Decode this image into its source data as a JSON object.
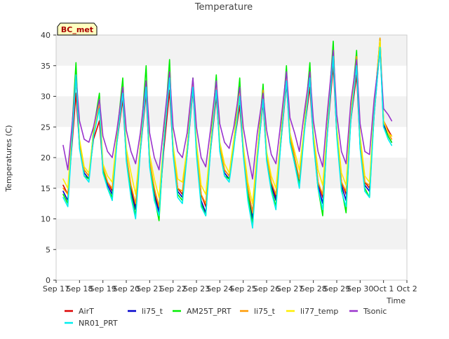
{
  "chart_data": {
    "type": "line",
    "title": "Temperature",
    "xlabel": "Time",
    "ylabel": "Temperatures (C)",
    "site_label": "BC_met",
    "xlim": [
      0,
      15
    ],
    "ylim": [
      0,
      40
    ],
    "x_ticks": [
      {
        "x": 0,
        "label": "Sep 17"
      },
      {
        "x": 1,
        "label": "Sep 18"
      },
      {
        "x": 2,
        "label": "Sep 19"
      },
      {
        "x": 3,
        "label": "Sep 20"
      },
      {
        "x": 4,
        "label": "Sep 21"
      },
      {
        "x": 5,
        "label": "Sep 22"
      },
      {
        "x": 6,
        "label": "Sep 23"
      },
      {
        "x": 7,
        "label": "Sep 24"
      },
      {
        "x": 8,
        "label": "Sep 25"
      },
      {
        "x": 9,
        "label": "Sep 26"
      },
      {
        "x": 10,
        "label": "Sep 27"
      },
      {
        "x": 11,
        "label": "Sep 28"
      },
      {
        "x": 12,
        "label": "Sep 29"
      },
      {
        "x": 13,
        "label": "Sep 30"
      },
      {
        "x": 14,
        "label": "Oct 1"
      },
      {
        "x": 15,
        "label": "Oct 2"
      }
    ],
    "y_ticks": [
      0,
      5,
      10,
      15,
      20,
      25,
      30,
      35,
      40
    ],
    "grid": "horizontal bands",
    "legend": "bottom",
    "x_units": "days since Sep 17 00:00",
    "series": [
      {
        "name": "AirT",
        "color": "#dd0000",
        "x": [
          0.3,
          0.5,
          0.7,
          0.85,
          1.0,
          1.2,
          1.4,
          1.6,
          1.85,
          2.0,
          2.2,
          2.4,
          2.6,
          2.85,
          3.0,
          3.2,
          3.4,
          3.6,
          3.85,
          4.0,
          4.2,
          4.4,
          4.6,
          4.85,
          5.0,
          5.2,
          5.4,
          5.6,
          5.85,
          6.0,
          6.2,
          6.4,
          6.6,
          6.85,
          7.0,
          7.2,
          7.4,
          7.6,
          7.85,
          8.0,
          8.2,
          8.4,
          8.6,
          8.85,
          9.0,
          9.2,
          9.4,
          9.6,
          9.85,
          10.0,
          10.2,
          10.4,
          10.6,
          10.85,
          11.0,
          11.2,
          11.4,
          11.6,
          11.85,
          12.0,
          12.2,
          12.4,
          12.6,
          12.85,
          13.0,
          13.2,
          13.4,
          13.6,
          13.85,
          14.0,
          14.2,
          14.35
        ],
        "y": [
          15.5,
          14.0,
          23.0,
          30.5,
          22.0,
          18.0,
          17.0,
          23.0,
          26.0,
          18.0,
          16.0,
          14.5,
          22.5,
          29.5,
          20.0,
          15.0,
          12.0,
          21.0,
          30.5,
          19.0,
          15.0,
          11.5,
          21.0,
          31.0,
          21.0,
          15.0,
          14.0,
          20.5,
          31.0,
          22.0,
          14.0,
          12.0,
          21.0,
          30.0,
          22.0,
          18.0,
          17.0,
          22.0,
          28.5,
          21.0,
          15.0,
          11.0,
          20.0,
          29.0,
          20.0,
          16.0,
          13.5,
          22.0,
          32.0,
          24.0,
          20.0,
          16.0,
          24.0,
          31.5,
          23.0,
          16.0,
          13.5,
          24.0,
          35.0,
          24.0,
          16.0,
          14.0,
          26.0,
          33.5,
          22.0,
          16.0,
          15.0,
          27.0,
          38.0,
          26.0,
          24.5,
          23.5
        ]
      },
      {
        "name": "li75_t",
        "color": "#0000cc",
        "x": [
          0.3,
          0.5,
          0.7,
          0.85,
          1.0,
          1.2,
          1.4,
          1.6,
          1.85,
          2.0,
          2.2,
          2.4,
          2.6,
          2.85,
          3.0,
          3.2,
          3.4,
          3.6,
          3.85,
          4.0,
          4.2,
          4.4,
          4.6,
          4.85,
          5.0,
          5.2,
          5.4,
          5.6,
          5.85,
          6.0,
          6.2,
          6.4,
          6.6,
          6.85,
          7.0,
          7.2,
          7.4,
          7.6,
          7.85,
          8.0,
          8.2,
          8.4,
          8.6,
          8.85,
          9.0,
          9.2,
          9.4,
          9.6,
          9.85,
          10.0,
          10.2,
          10.4,
          10.6,
          10.85,
          11.0,
          11.2,
          11.4,
          11.6,
          11.85,
          12.0,
          12.2,
          12.4,
          12.6,
          12.85,
          13.0,
          13.2,
          13.4,
          13.6,
          13.85,
          14.0,
          14.2,
          14.35
        ],
        "y": [
          14.5,
          13.0,
          24.5,
          33.0,
          22.0,
          17.5,
          16.5,
          23.5,
          28.5,
          18.0,
          15.5,
          14.0,
          23.0,
          31.0,
          20.0,
          14.5,
          11.5,
          21.5,
          32.0,
          19.0,
          14.0,
          11.0,
          22.0,
          33.5,
          21.0,
          14.5,
          13.5,
          21.0,
          32.5,
          21.0,
          13.0,
          11.0,
          21.5,
          31.5,
          21.5,
          17.5,
          16.5,
          22.0,
          30.0,
          21.0,
          14.5,
          10.0,
          20.0,
          30.0,
          20.0,
          15.5,
          13.0,
          22.5,
          33.0,
          23.0,
          19.5,
          15.5,
          24.0,
          33.5,
          23.0,
          15.5,
          12.5,
          24.5,
          37.0,
          24.0,
          15.5,
          13.0,
          26.5,
          35.5,
          22.0,
          15.5,
          14.5,
          27.5,
          38.5,
          25.5,
          23.5,
          22.5
        ]
      },
      {
        "name": "AM25T_PRT",
        "color": "#00ee00",
        "x": [
          0.3,
          0.5,
          0.7,
          0.85,
          1.0,
          1.2,
          1.4,
          1.6,
          1.85,
          2.0,
          2.2,
          2.4,
          2.6,
          2.85,
          3.0,
          3.2,
          3.4,
          3.6,
          3.85,
          4.0,
          4.2,
          4.4,
          4.6,
          4.85,
          5.0,
          5.2,
          5.4,
          5.6,
          5.85,
          6.0,
          6.2,
          6.4,
          6.6,
          6.85,
          7.0,
          7.2,
          7.4,
          7.6,
          7.85,
          8.0,
          8.2,
          8.4,
          8.6,
          8.85,
          9.0,
          9.2,
          9.4,
          9.6,
          9.85,
          10.0,
          10.2,
          10.4,
          10.6,
          10.85,
          11.0,
          11.2,
          11.4,
          11.6,
          11.85,
          12.0,
          12.2,
          12.4,
          12.6,
          12.85,
          13.0,
          13.2,
          13.4,
          13.6,
          13.85,
          14.0,
          14.2,
          14.35
        ],
        "y": [
          14.0,
          12.5,
          26.0,
          35.5,
          22.0,
          17.0,
          16.5,
          24.5,
          30.5,
          18.0,
          15.0,
          13.5,
          23.5,
          33.0,
          20.0,
          14.0,
          10.5,
          22.0,
          35.0,
          19.0,
          13.5,
          9.7,
          22.5,
          36.0,
          21.0,
          14.0,
          13.0,
          21.5,
          33.0,
          21.0,
          12.5,
          10.5,
          22.0,
          33.5,
          21.5,
          17.0,
          16.5,
          22.5,
          33.0,
          21.0,
          14.0,
          9.0,
          20.5,
          32.0,
          20.0,
          15.0,
          12.0,
          23.0,
          35.0,
          23.0,
          19.0,
          15.5,
          24.5,
          35.5,
          23.0,
          15.0,
          10.5,
          25.0,
          39.0,
          24.0,
          15.0,
          11.0,
          27.0,
          37.5,
          22.0,
          15.0,
          13.5,
          28.0,
          39.5,
          25.0,
          23.5,
          22.5
        ]
      },
      {
        "name": "li75_t",
        "color": "#ff9900",
        "x": [
          0.3,
          0.5,
          0.7,
          0.85,
          1.0,
          1.2,
          1.4,
          1.6,
          1.85,
          2.0,
          2.2,
          2.4,
          2.6,
          2.85,
          3.0,
          3.2,
          3.4,
          3.6,
          3.85,
          4.0,
          4.2,
          4.4,
          4.6,
          4.85,
          5.0,
          5.2,
          5.4,
          5.6,
          5.85,
          6.0,
          6.2,
          6.4,
          6.6,
          6.85,
          7.0,
          7.2,
          7.4,
          7.6,
          7.85,
          8.0,
          8.2,
          8.4,
          8.6,
          8.85,
          9.0,
          9.2,
          9.4,
          9.6,
          9.85,
          10.0,
          10.2,
          10.4,
          10.6,
          10.85,
          11.0,
          11.2,
          11.4,
          11.6,
          11.85,
          12.0,
          12.2,
          12.4,
          12.6,
          12.85,
          13.0,
          13.2,
          13.4,
          13.6,
          13.85,
          14.0,
          14.2,
          14.35
        ],
        "y": [
          15.0,
          14.0,
          25.0,
          33.5,
          22.5,
          18.0,
          17.0,
          24.0,
          29.0,
          18.5,
          16.0,
          15.0,
          23.5,
          31.5,
          20.5,
          15.5,
          12.5,
          22.0,
          32.5,
          19.5,
          15.0,
          12.0,
          22.5,
          34.0,
          21.5,
          15.0,
          14.5,
          21.5,
          32.5,
          21.5,
          14.0,
          12.5,
          22.0,
          32.0,
          22.0,
          18.0,
          17.0,
          22.5,
          31.0,
          21.5,
          15.0,
          11.0,
          20.5,
          31.0,
          20.5,
          16.0,
          14.0,
          23.0,
          33.5,
          23.5,
          20.0,
          16.5,
          24.5,
          34.0,
          23.5,
          16.0,
          14.0,
          25.0,
          37.5,
          24.5,
          16.0,
          14.5,
          27.0,
          36.5,
          22.5,
          16.0,
          15.5,
          28.0,
          39.5,
          26.0,
          24.0,
          23.0
        ]
      },
      {
        "name": "li77_temp",
        "color": "#ffee00",
        "x": [
          0.3,
          0.5,
          0.7,
          0.85,
          1.0,
          1.2,
          1.4,
          1.6,
          1.85,
          2.0,
          2.2,
          2.4,
          2.6,
          2.85,
          3.0,
          3.2,
          3.4,
          3.6,
          3.85,
          4.0,
          4.2,
          4.4,
          4.6,
          4.85,
          5.0,
          5.2,
          5.4,
          5.6,
          5.85,
          6.0,
          6.2,
          6.4,
          6.6,
          6.85,
          7.0,
          7.2,
          7.4,
          7.6,
          7.85,
          8.0,
          8.2,
          8.4,
          8.6,
          8.85,
          9.0,
          9.2,
          9.4,
          9.6,
          9.85,
          10.0,
          10.2,
          10.4,
          10.6,
          10.85,
          11.0,
          11.2,
          11.4,
          11.6,
          11.85,
          12.0,
          12.2,
          12.4,
          12.6,
          12.85,
          13.0,
          13.2,
          13.4,
          13.6,
          13.85,
          14.0,
          14.2,
          14.35
        ],
        "y": [
          16.5,
          15.0,
          25.0,
          33.0,
          23.0,
          18.5,
          17.5,
          24.0,
          29.5,
          19.0,
          17.0,
          16.0,
          23.5,
          31.0,
          21.5,
          17.5,
          14.0,
          22.0,
          32.0,
          20.5,
          16.5,
          13.5,
          22.5,
          33.5,
          22.0,
          16.5,
          16.0,
          21.5,
          32.0,
          22.5,
          15.5,
          14.0,
          22.0,
          31.5,
          22.5,
          19.0,
          17.5,
          23.0,
          30.5,
          22.0,
          16.0,
          12.5,
          21.0,
          30.0,
          21.0,
          17.0,
          15.0,
          23.0,
          33.0,
          24.0,
          21.0,
          18.0,
          24.5,
          33.5,
          24.0,
          18.0,
          15.5,
          25.0,
          37.0,
          25.0,
          17.5,
          15.5,
          27.0,
          36.0,
          23.5,
          17.0,
          16.0,
          28.0,
          39.0,
          26.0,
          24.0,
          23.5
        ]
      },
      {
        "name": "Tsonic",
        "color": "#9933cc",
        "x": [
          0.3,
          0.5,
          0.7,
          0.85,
          1.0,
          1.2,
          1.4,
          1.6,
          1.85,
          2.0,
          2.2,
          2.4,
          2.6,
          2.85,
          3.0,
          3.2,
          3.4,
          3.6,
          3.85,
          4.0,
          4.2,
          4.4,
          4.6,
          4.85,
          5.0,
          5.2,
          5.4,
          5.6,
          5.85,
          6.0,
          6.2,
          6.4,
          6.6,
          6.85,
          7.0,
          7.2,
          7.4,
          7.6,
          7.85,
          8.0,
          8.2,
          8.4,
          8.6,
          8.85,
          9.0,
          9.2,
          9.4,
          9.6,
          9.85,
          10.0,
          10.2,
          10.4,
          10.6,
          10.85,
          11.0,
          11.2,
          11.4,
          11.6,
          11.85,
          12.0,
          12.2,
          12.4,
          12.6,
          12.85,
          13.0,
          13.2,
          13.4,
          13.6,
          13.85,
          14.0,
          14.2,
          14.35
        ],
        "y": [
          22.0,
          18.0,
          26.0,
          33.5,
          26.0,
          23.0,
          22.5,
          25.0,
          29.5,
          23.5,
          21.0,
          20.0,
          24.5,
          31.5,
          24.5,
          21.0,
          19.0,
          24.0,
          32.5,
          24.0,
          20.0,
          18.0,
          25.0,
          34.0,
          25.0,
          21.0,
          20.0,
          24.0,
          33.0,
          25.0,
          20.0,
          18.5,
          24.5,
          32.5,
          25.5,
          22.5,
          21.5,
          25.0,
          31.5,
          25.0,
          20.5,
          16.5,
          24.0,
          30.5,
          24.5,
          20.5,
          19.0,
          25.5,
          34.0,
          26.5,
          24.0,
          21.0,
          27.0,
          34.0,
          26.0,
          21.0,
          18.5,
          27.5,
          37.5,
          27.0,
          21.0,
          19.0,
          29.0,
          36.0,
          25.5,
          21.0,
          20.5,
          29.5,
          37.5,
          28.0,
          27.0,
          26.0
        ]
      },
      {
        "name": "NR01_PRT",
        "color": "#00eeee",
        "x": [
          0.3,
          0.5,
          0.7,
          0.85,
          1.0,
          1.2,
          1.4,
          1.6,
          1.85,
          2.0,
          2.2,
          2.4,
          2.6,
          2.85,
          3.0,
          3.2,
          3.4,
          3.6,
          3.85,
          4.0,
          4.2,
          4.4,
          4.6,
          4.85,
          5.0,
          5.2,
          5.4,
          5.6,
          5.85,
          6.0,
          6.2,
          6.4,
          6.6,
          6.85,
          7.0,
          7.2,
          7.4,
          7.6,
          7.85,
          8.0,
          8.2,
          8.4,
          8.6,
          8.85,
          9.0,
          9.2,
          9.4,
          9.6,
          9.85,
          10.0,
          10.2,
          10.4,
          10.6,
          10.85,
          11.0,
          11.2,
          11.4,
          11.6,
          11.85,
          12.0,
          12.2,
          12.4,
          12.6,
          12.85,
          13.0,
          13.2,
          13.4,
          13.6,
          13.85,
          14.0,
          14.2,
          14.35
        ],
        "y": [
          13.5,
          12.0,
          24.0,
          33.5,
          21.5,
          17.0,
          16.0,
          23.5,
          28.0,
          17.5,
          15.0,
          13.0,
          22.5,
          30.5,
          19.5,
          13.5,
          10.0,
          21.0,
          31.5,
          18.5,
          13.0,
          10.5,
          22.0,
          33.0,
          20.5,
          13.5,
          12.5,
          20.5,
          31.5,
          20.5,
          12.0,
          10.5,
          21.0,
          31.0,
          21.0,
          17.0,
          16.0,
          21.5,
          30.0,
          20.5,
          13.0,
          8.5,
          19.5,
          29.5,
          19.5,
          14.5,
          11.5,
          22.0,
          32.5,
          22.5,
          19.0,
          15.0,
          23.5,
          33.0,
          22.5,
          15.0,
          11.5,
          24.0,
          36.5,
          23.5,
          14.5,
          12.0,
          26.0,
          35.0,
          21.5,
          14.5,
          13.5,
          27.0,
          38.0,
          25.0,
          23.0,
          22.0
        ]
      }
    ],
    "legend_entries": [
      {
        "name": "AirT",
        "color": "#dd0000"
      },
      {
        "name": "li75_t",
        "color": "#0000cc"
      },
      {
        "name": "AM25T_PRT",
        "color": "#00ee00"
      },
      {
        "name": "li75_t",
        "color": "#ff9900"
      },
      {
        "name": "li77_temp",
        "color": "#ffee00"
      },
      {
        "name": "Tsonic",
        "color": "#9933cc"
      },
      {
        "name": "NR01_PRT",
        "color": "#00eeee"
      }
    ]
  }
}
